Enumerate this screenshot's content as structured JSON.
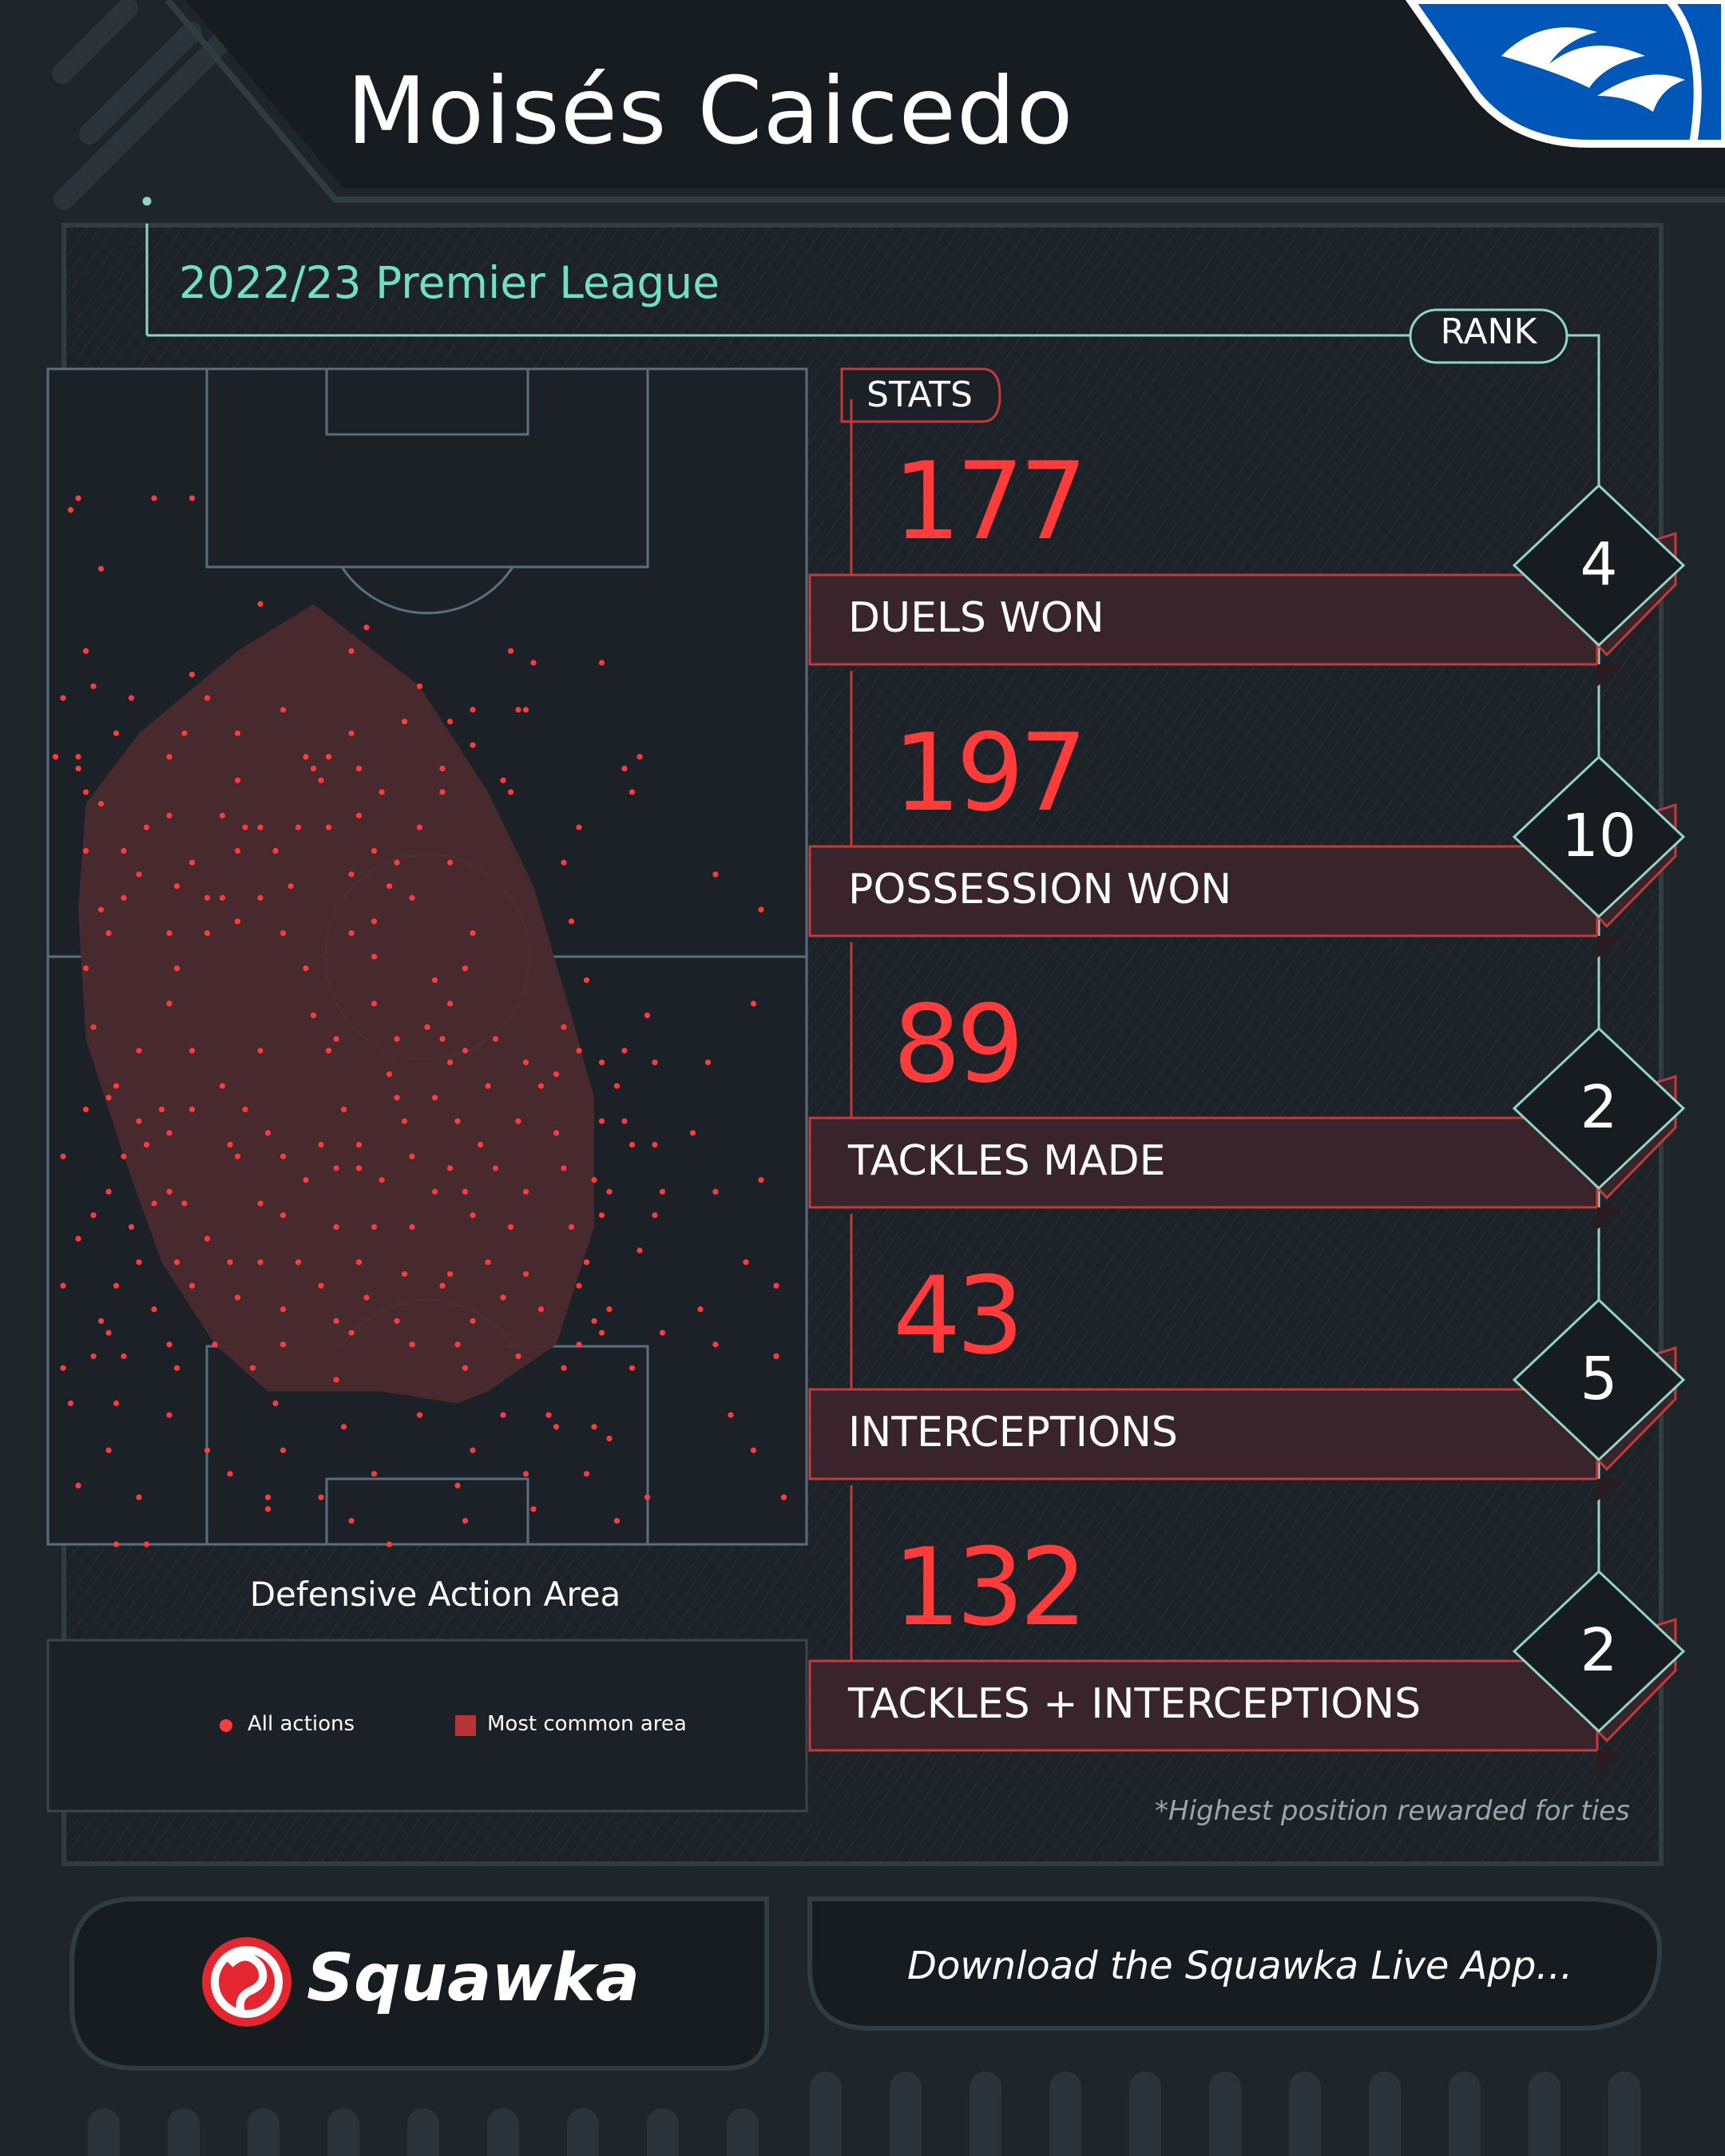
{
  "player_name": "Moisés Caicedo",
  "season": "2022/23 Premier League",
  "labels": {
    "rank": "RANK",
    "stats": "STATS"
  },
  "stats": [
    {
      "value": "177",
      "label": "DUELS WON",
      "rank": "4"
    },
    {
      "value": "197",
      "label": "POSSESSION WON",
      "rank": "10"
    },
    {
      "value": "89",
      "label": "TACKLES MADE",
      "rank": "2"
    },
    {
      "value": "43",
      "label": "INTERCEPTIONS",
      "rank": "5"
    },
    {
      "value": "132",
      "label": "TACKLES + INTERCEPTIONS",
      "rank": "2"
    }
  ],
  "footnote": "*Highest position rewarded for ties",
  "pitch": {
    "caption": "Defensive Action Area",
    "legend": {
      "all_actions": "All actions",
      "most_common_area": "Most common area"
    }
  },
  "footer": {
    "brand": "Squawka",
    "cta": "Download the Squawka Live App..."
  },
  "colors": {
    "background": "#1e252b",
    "accent_red": "#ff3b3b",
    "teal": "#6fe0c2",
    "band": "#3a242c",
    "area": "#4a2a2e"
  },
  "icons": {
    "club_badge": "seagull-crest-icon",
    "brand_logo": "squawka-logo-icon"
  },
  "chart_data": {
    "type": "scatter",
    "title": "Defensive Action Area",
    "x_range": [
      0,
      100
    ],
    "y_range": [
      0,
      100
    ],
    "series": [
      {
        "name": "All actions",
        "points": [
          [
            4,
            11
          ],
          [
            14,
            11
          ],
          [
            19,
            11
          ],
          [
            3,
            12
          ],
          [
            7,
            17
          ],
          [
            28,
            20
          ],
          [
            42,
            22
          ],
          [
            61,
            24
          ],
          [
            5,
            24
          ],
          [
            19,
            26
          ],
          [
            40,
            24
          ],
          [
            64,
            25
          ],
          [
            73,
            25
          ],
          [
            6,
            27
          ],
          [
            2,
            28
          ],
          [
            11,
            28
          ],
          [
            21,
            28
          ],
          [
            18,
            31
          ],
          [
            31,
            29
          ],
          [
            49,
            27
          ],
          [
            53,
            30
          ],
          [
            56,
            29
          ],
          [
            62,
            29
          ],
          [
            4,
            33
          ],
          [
            9,
            31
          ],
          [
            25,
            31
          ],
          [
            40,
            31
          ],
          [
            56,
            32
          ],
          [
            63,
            29
          ],
          [
            16,
            33
          ],
          [
            34,
            33
          ],
          [
            47,
            30
          ],
          [
            52,
            34
          ],
          [
            1,
            33
          ],
          [
            4,
            34
          ],
          [
            35,
            34
          ],
          [
            36,
            35
          ],
          [
            41,
            34
          ],
          [
            37,
            33
          ],
          [
            5,
            36
          ],
          [
            25,
            35
          ],
          [
            52,
            36
          ],
          [
            61,
            36
          ],
          [
            76,
            34
          ],
          [
            78,
            33
          ],
          [
            60,
            35
          ],
          [
            7,
            37
          ],
          [
            16,
            38
          ],
          [
            23,
            38
          ],
          [
            13,
            39
          ],
          [
            26,
            39
          ],
          [
            28,
            39
          ],
          [
            33,
            39
          ],
          [
            37,
            39
          ],
          [
            41,
            38
          ],
          [
            44,
            36
          ],
          [
            49,
            39
          ],
          [
            70,
            39
          ],
          [
            77,
            36
          ],
          [
            5,
            41
          ],
          [
            10,
            41
          ],
          [
            19,
            42
          ],
          [
            25,
            41
          ],
          [
            30,
            41
          ],
          [
            43,
            41
          ],
          [
            46,
            42
          ],
          [
            53,
            42
          ],
          [
            68,
            42
          ],
          [
            10,
            45
          ],
          [
            17,
            44
          ],
          [
            21,
            45
          ],
          [
            23,
            45
          ],
          [
            28,
            45
          ],
          [
            32,
            44
          ],
          [
            40,
            43
          ],
          [
            45,
            44
          ],
          [
            48,
            45
          ],
          [
            7,
            46
          ],
          [
            12,
            43
          ],
          [
            25,
            47
          ],
          [
            8,
            48
          ],
          [
            16,
            48
          ],
          [
            40,
            48
          ],
          [
            43,
            47
          ],
          [
            21,
            48
          ],
          [
            31,
            48
          ],
          [
            43,
            50
          ],
          [
            56,
            48
          ],
          [
            69,
            47
          ],
          [
            88,
            43
          ],
          [
            94,
            46
          ],
          [
            5,
            51
          ],
          [
            17,
            51
          ],
          [
            34,
            51
          ],
          [
            51,
            52
          ],
          [
            55,
            51
          ],
          [
            71,
            52
          ],
          [
            6,
            56
          ],
          [
            16,
            54
          ],
          [
            35,
            55
          ],
          [
            43,
            54
          ],
          [
            46,
            57
          ],
          [
            50,
            56
          ],
          [
            53,
            54
          ],
          [
            52,
            57
          ],
          [
            68,
            56
          ],
          [
            79,
            55
          ],
          [
            93,
            54
          ],
          [
            12,
            58
          ],
          [
            19,
            58
          ],
          [
            28,
            58
          ],
          [
            38,
            57
          ],
          [
            55,
            58
          ],
          [
            70,
            58
          ],
          [
            59,
            57
          ],
          [
            67,
            60
          ],
          [
            9,
            61
          ],
          [
            23,
            61
          ],
          [
            37,
            58
          ],
          [
            45,
            60
          ],
          [
            53,
            59
          ],
          [
            63,
            59
          ],
          [
            73,
            59
          ],
          [
            76,
            58
          ],
          [
            80,
            59
          ],
          [
            87,
            59
          ],
          [
            5,
            63
          ],
          [
            15,
            63
          ],
          [
            19,
            63
          ],
          [
            26,
            63
          ],
          [
            39,
            63
          ],
          [
            46,
            62
          ],
          [
            51,
            62
          ],
          [
            58,
            61
          ],
          [
            65,
            61
          ],
          [
            75,
            61
          ],
          [
            8,
            62
          ],
          [
            12,
            64
          ],
          [
            13,
            66
          ],
          [
            16,
            65
          ],
          [
            24,
            66
          ],
          [
            29,
            65
          ],
          [
            36,
            66
          ],
          [
            41,
            66
          ],
          [
            47,
            64
          ],
          [
            54,
            64
          ],
          [
            57,
            66
          ],
          [
            62,
            64
          ],
          [
            67,
            65
          ],
          [
            73,
            64
          ],
          [
            76,
            64
          ],
          [
            85,
            65
          ],
          [
            2,
            67
          ],
          [
            10,
            67
          ],
          [
            25,
            67
          ],
          [
            31,
            67
          ],
          [
            38,
            68
          ],
          [
            41,
            68
          ],
          [
            48,
            67
          ],
          [
            53,
            68
          ],
          [
            59,
            68
          ],
          [
            68,
            68
          ],
          [
            77,
            66
          ],
          [
            80,
            66
          ],
          [
            72,
            69
          ],
          [
            8,
            70
          ],
          [
            14,
            71
          ],
          [
            16,
            70
          ],
          [
            18,
            71
          ],
          [
            28,
            71
          ],
          [
            34,
            69
          ],
          [
            44,
            69
          ],
          [
            51,
            70
          ],
          [
            55,
            70
          ],
          [
            63,
            70
          ],
          [
            74,
            70
          ],
          [
            81,
            70
          ],
          [
            88,
            70
          ],
          [
            94,
            69
          ],
          [
            6,
            72
          ],
          [
            11,
            73
          ],
          [
            21,
            74
          ],
          [
            31,
            72
          ],
          [
            38,
            73
          ],
          [
            43,
            73
          ],
          [
            48,
            73
          ],
          [
            56,
            72
          ],
          [
            61,
            73
          ],
          [
            69,
            73
          ],
          [
            73,
            72
          ],
          [
            80,
            72
          ],
          [
            4,
            74
          ],
          [
            12,
            76
          ],
          [
            17,
            76
          ],
          [
            24,
            76
          ],
          [
            28,
            76
          ],
          [
            33,
            76
          ],
          [
            41,
            76
          ],
          [
            47,
            77
          ],
          [
            53,
            77
          ],
          [
            58,
            76
          ],
          [
            63,
            77
          ],
          [
            71,
            76
          ],
          [
            78,
            75
          ],
          [
            92,
            76
          ],
          [
            2,
            78
          ],
          [
            9,
            78
          ],
          [
            19,
            78
          ],
          [
            25,
            79
          ],
          [
            36,
            78
          ],
          [
            42,
            79
          ],
          [
            52,
            78
          ],
          [
            60,
            79
          ],
          [
            70,
            78
          ],
          [
            74,
            80
          ],
          [
            86,
            80
          ],
          [
            96,
            78
          ],
          [
            7,
            81
          ],
          [
            14,
            80
          ],
          [
            31,
            80
          ],
          [
            38,
            81
          ],
          [
            46,
            81
          ],
          [
            56,
            81
          ],
          [
            65,
            80
          ],
          [
            72,
            81
          ],
          [
            8,
            82
          ],
          [
            16,
            83
          ],
          [
            22,
            83
          ],
          [
            31,
            83
          ],
          [
            40,
            82
          ],
          [
            48,
            83
          ],
          [
            54,
            83
          ],
          [
            62,
            84
          ],
          [
            70,
            83
          ],
          [
            73,
            82
          ],
          [
            81,
            82
          ],
          [
            88,
            83
          ],
          [
            2,
            85
          ],
          [
            6,
            84
          ],
          [
            10,
            84
          ],
          [
            17,
            85
          ],
          [
            27,
            85
          ],
          [
            38,
            86
          ],
          [
            55,
            85
          ],
          [
            68,
            85
          ],
          [
            77,
            85
          ],
          [
            96,
            84
          ],
          [
            3,
            88
          ],
          [
            9,
            88
          ],
          [
            16,
            89
          ],
          [
            30,
            88
          ],
          [
            39,
            90
          ],
          [
            49,
            89
          ],
          [
            60,
            89
          ],
          [
            66,
            89
          ],
          [
            72,
            90
          ],
          [
            90,
            89
          ],
          [
            8,
            92
          ],
          [
            21,
            92
          ],
          [
            31,
            92
          ],
          [
            56,
            92
          ],
          [
            67,
            90
          ],
          [
            74,
            91
          ],
          [
            93,
            92
          ],
          [
            4,
            95
          ],
          [
            12,
            96
          ],
          [
            24,
            94
          ],
          [
            29,
            96
          ],
          [
            36,
            96
          ],
          [
            43,
            94
          ],
          [
            54,
            95
          ],
          [
            63,
            94
          ],
          [
            71,
            94
          ],
          [
            79,
            96
          ],
          [
            97,
            96
          ],
          [
            9,
            100
          ],
          [
            13,
            100
          ],
          [
            29,
            97
          ],
          [
            40,
            98
          ],
          [
            45,
            100
          ],
          [
            55,
            98
          ],
          [
            64,
            97
          ],
          [
            75,
            98
          ]
        ]
      },
      {
        "name": "Most common area",
        "polygon": [
          [
            35,
            20
          ],
          [
            49,
            27
          ],
          [
            58,
            36
          ],
          [
            64,
            44
          ],
          [
            69,
            55
          ],
          [
            72,
            62
          ],
          [
            72,
            73
          ],
          [
            67,
            83
          ],
          [
            58,
            87
          ],
          [
            54,
            88
          ],
          [
            44,
            87
          ],
          [
            32,
            87
          ],
          [
            29,
            87
          ],
          [
            22,
            83
          ],
          [
            15,
            76
          ],
          [
            10,
            67
          ],
          [
            5,
            57
          ],
          [
            4,
            46
          ],
          [
            5,
            37
          ],
          [
            12,
            31
          ],
          [
            25,
            24
          ]
        ]
      }
    ]
  }
}
